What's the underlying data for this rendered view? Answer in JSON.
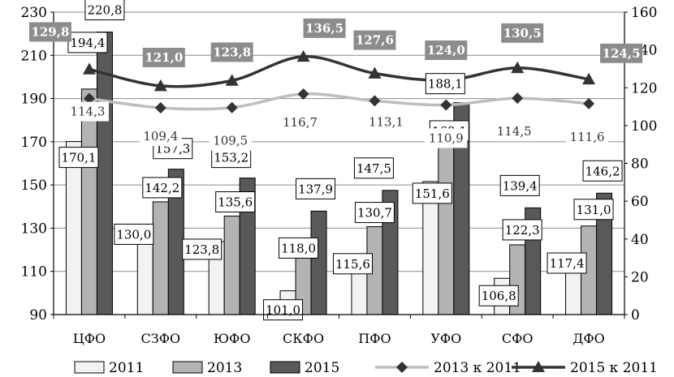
{
  "chart_data": {
    "type": "bar",
    "categories": [
      "ЦФО",
      "СЗФО",
      "ЮФО",
      "СКФО",
      "ПФО",
      "УФО",
      "СФО",
      "ДФО"
    ],
    "series": [
      {
        "name": "2011",
        "kind": "bar",
        "axis": "left",
        "color": "#f2f2f2",
        "values": [
          170.1,
          130.0,
          123.8,
          101.0,
          115.6,
          151.6,
          106.8,
          117.4
        ],
        "labels": [
          "170,1",
          "130,0",
          "123,8",
          "101,0",
          "115,6",
          "151,6",
          "106,8",
          "117,4"
        ]
      },
      {
        "name": "2013",
        "kind": "bar",
        "axis": "left",
        "color": "#b3b3b3",
        "values": [
          194.4,
          142.2,
          135.6,
          118.0,
          130.7,
          168.1,
          122.3,
          131.0
        ],
        "labels": [
          "194,4",
          "142,2",
          "135,6",
          "118,0",
          "130,7",
          "168,1",
          "122,3",
          "131,0"
        ]
      },
      {
        "name": "2015",
        "kind": "bar",
        "axis": "left",
        "color": "#595959",
        "values": [
          220.8,
          157.3,
          153.2,
          137.9,
          147.5,
          188.1,
          139.4,
          146.2
        ],
        "labels": [
          "220,8",
          "157,3",
          "153,2",
          "137,9",
          "147,5",
          "188,1",
          "139,4",
          "146,2"
        ]
      },
      {
        "name": "2013 к 2011",
        "kind": "line",
        "axis": "right",
        "marker": "diamond",
        "color": "#bdbdbd",
        "values": [
          114.3,
          109.4,
          109.5,
          116.7,
          113.1,
          110.9,
          114.5,
          111.6
        ],
        "labels": [
          "114,3",
          "109,4",
          "109,5",
          "116,7",
          "113,1",
          "110,9",
          "114,5",
          "111,6"
        ]
      },
      {
        "name": "2015 к 2011",
        "kind": "line",
        "axis": "right",
        "marker": "triangle",
        "color": "#333333",
        "values": [
          129.8,
          121.0,
          123.8,
          136.5,
          127.6,
          124.0,
          130.5,
          124.5
        ],
        "labels": [
          "129,8",
          "121,0",
          "123,8",
          "136,5",
          "127,6",
          "124,0",
          "130,5",
          "124,5"
        ]
      }
    ],
    "left_axis": {
      "min": 90,
      "max": 230,
      "ticks": [
        "90",
        "110",
        "130",
        "150",
        "170",
        "190",
        "210",
        "230"
      ]
    },
    "right_axis": {
      "min": 0,
      "max": 160,
      "ticks": [
        "0",
        "20",
        "40",
        "60",
        "80",
        "100",
        "120",
        "140",
        "160"
      ]
    },
    "grid": true,
    "legend": "bottom",
    "title": "",
    "xlabel": "",
    "ylabel": ""
  }
}
